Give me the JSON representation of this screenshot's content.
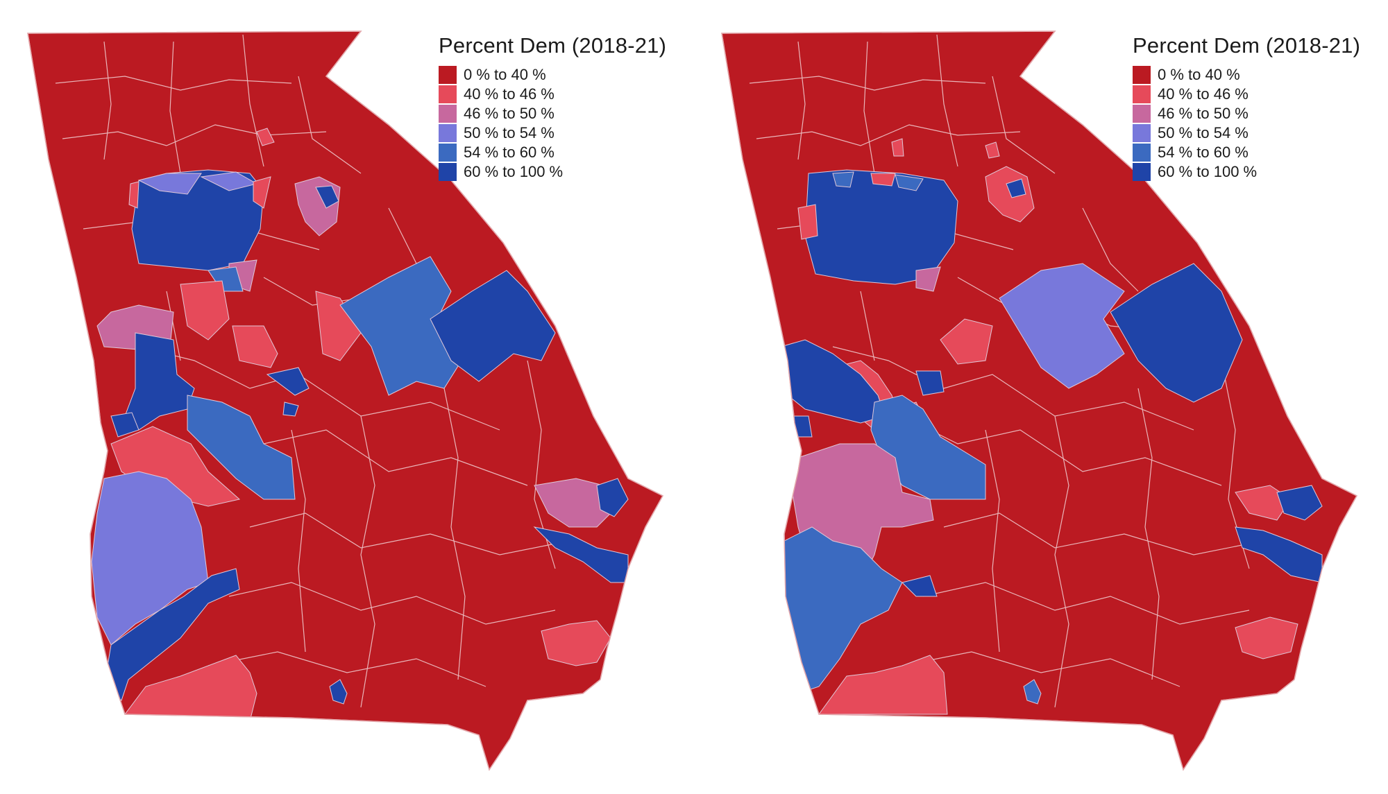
{
  "legend": {
    "title": "Percent Dem (2018-21)",
    "items": [
      {
        "label": "0 % to 40 %",
        "color": "#bb1a22"
      },
      {
        "label": "40 % to 46 %",
        "color": "#e64a5a"
      },
      {
        "label": "46 % to 50 %",
        "color": "#c7689e"
      },
      {
        "label": "50 % to 54 %",
        "color": "#7878db"
      },
      {
        "label": "54 % to 60 %",
        "color": "#3b6ac0"
      },
      {
        "label": "60 % to 100 %",
        "color": "#1f44a8"
      }
    ]
  },
  "maps": [
    {
      "name": "map-left"
    },
    {
      "name": "map-right"
    }
  ]
}
